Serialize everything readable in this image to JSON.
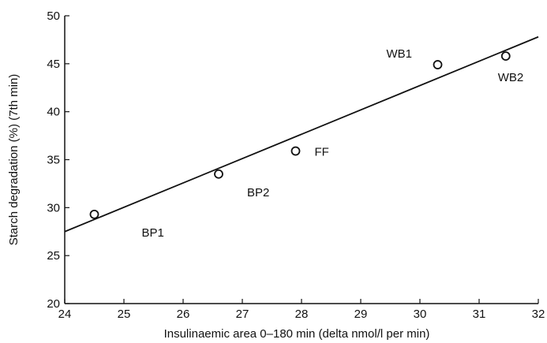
{
  "chart_data": {
    "type": "scatter",
    "title": "",
    "xlabel": "Insulinaemic area 0–180 min (delta nmol/l per min)",
    "ylabel": "Starch degradation (%) (7th min)",
    "xlim": [
      24,
      32
    ],
    "ylim": [
      20,
      50
    ],
    "x_ticks": [
      "24",
      "25",
      "26",
      "27",
      "28",
      "29",
      "30",
      "31",
      "32"
    ],
    "y_ticks": [
      "20",
      "25",
      "30",
      "35",
      "40",
      "45",
      "50"
    ],
    "grid": false,
    "legend": "none",
    "points": [
      {
        "label": "BP1",
        "x": 24.5,
        "y": 29.3
      },
      {
        "label": "BP2",
        "x": 26.6,
        "y": 33.5
      },
      {
        "label": "FF",
        "x": 27.9,
        "y": 35.9
      },
      {
        "label": "WB1",
        "x": 30.3,
        "y": 44.9
      },
      {
        "label": "WB2",
        "x": 31.45,
        "y": 45.8
      }
    ],
    "regression_line": {
      "x": [
        24.0,
        32.0
      ],
      "y": [
        27.5,
        47.8
      ]
    },
    "colors": {
      "ink": "#111111",
      "background": "#ffffff"
    }
  }
}
